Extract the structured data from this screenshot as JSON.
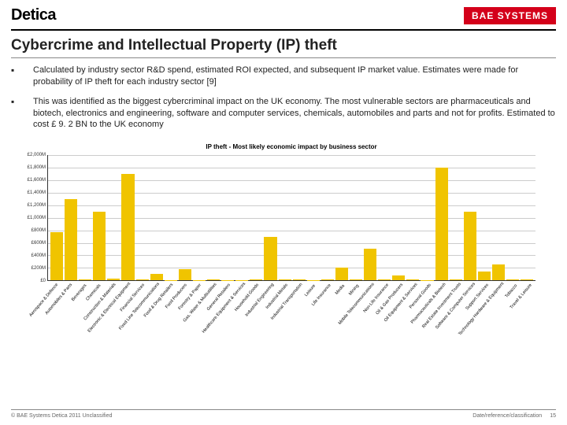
{
  "header": {
    "logo_left": "Detica",
    "logo_right": "BAE SYSTEMS"
  },
  "title": "Cybercrime and Intellectual Property (IP) theft",
  "bullets": [
    "Calculated by industry sector R&D spend, estimated ROI expected, and subsequent IP market value. Estimates were made for probability of IP theft for each industry sector [9]",
    "This was identified as the biggest cybercriminal impact on the UK economy. The most vulnerable sectors are pharmaceuticals and biotech, electronics and engineering, software and computer services, chemicals, automobiles and parts and not for profits. Estimated to cost £ 9. 2 BN to the UK economy"
  ],
  "chart": {
    "title": "IP theft - Most likely economic impact by business sector",
    "type": "bar",
    "ylim": [
      0,
      2000
    ],
    "ytick_step": 200,
    "yticks": [
      "£0",
      "£200M",
      "£400M",
      "£600M",
      "£800M",
      "£1,000M",
      "£1,200M",
      "£1,400M",
      "£1,600M",
      "£1,800M",
      "£2,000M"
    ],
    "bar_color": "#f0c400",
    "grid_color": "#cccccc",
    "background_color": "#ffffff",
    "title_fontsize": 8,
    "label_fontsize": 6,
    "categories": [
      "Aerospace & Defence",
      "Automobiles & Parts",
      "Beverages",
      "Chemicals",
      "Construction & Materials",
      "Electronic & Electrical Equipment",
      "Financial Services",
      "Fixed Line Telecommunications",
      "Food & Drug Retailers",
      "Food Producers",
      "Forestry & Paper",
      "Gas, Water & Multiutilities",
      "General Retailers",
      "Healthcare Equipment & Services",
      "Household Goods",
      "Industrial Engineering",
      "Industrial Metals",
      "Industrial Transportation",
      "Leisure",
      "Life Insurance",
      "Media",
      "Mining",
      "Mobile Telecommunications",
      "Non-Life Insurance",
      "Oil & Gas Producers",
      "Oil Equipment & Services",
      "Personal Goods",
      "Pharmaceuticals & Biotech",
      "Real Estate Investment Trusts",
      "Software & Computer Services",
      "Support Services",
      "Technology Hardware & Equipment",
      "Tobacco",
      "Travel & Leisure"
    ],
    "values": [
      770,
      1300,
      20,
      1100,
      30,
      1700,
      20,
      100,
      5,
      180,
      5,
      10,
      5,
      5,
      10,
      700,
      20,
      20,
      5,
      10,
      200,
      20,
      500,
      20,
      80,
      20,
      5,
      1800,
      10,
      1100,
      140,
      250,
      20,
      20
    ]
  },
  "footer": {
    "left": "© BAE Systems Detica 2011 Unclassified",
    "right_ref": "Date/reference/classification",
    "page": "15"
  }
}
